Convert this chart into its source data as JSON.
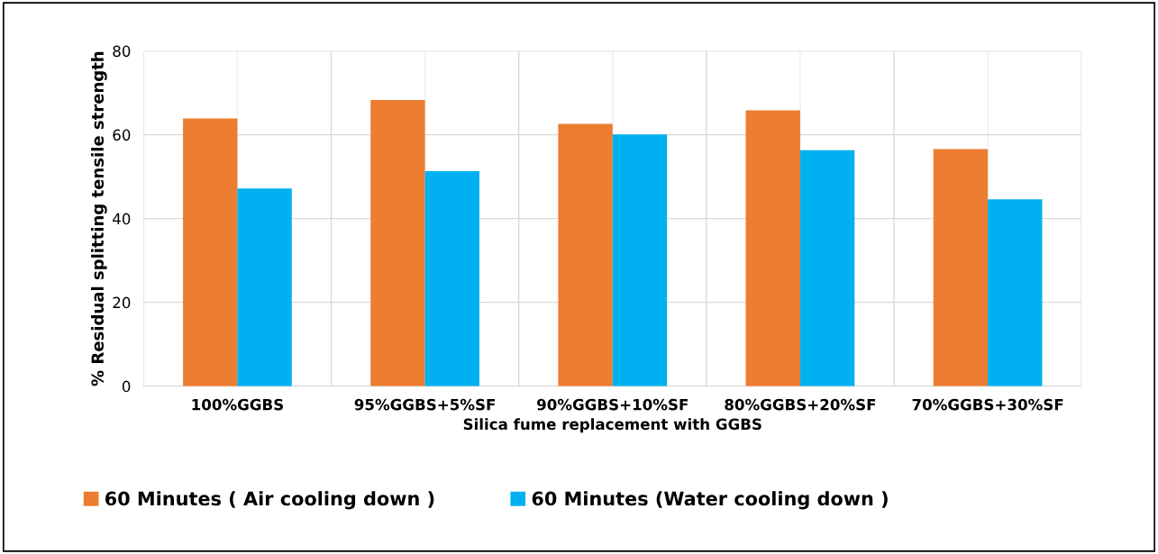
{
  "chart_data": {
    "type": "bar",
    "xlabel": "Silica fume replacement with GGBS",
    "ylabel": "% Residual splitting tensile strength",
    "categories": [
      "100%GGBS",
      "95%GGBS+5%SF",
      "90%GGBS+10%SF",
      "80%GGBS+20%SF",
      "70%GGBS+30%SF"
    ],
    "series": [
      {
        "name": "60 Minutes ( Air cooling down )",
        "color": "#ed7d31",
        "values": [
          63.9,
          68.3,
          62.6,
          65.8,
          56.6
        ]
      },
      {
        "name": "60 Minutes (Water cooling down )",
        "color": "#00b0f0",
        "values": [
          47.2,
          51.3,
          60.1,
          56.3,
          44.6
        ]
      }
    ],
    "ylim": [
      0,
      80
    ],
    "yticks": [
      0,
      20,
      40,
      60,
      80
    ],
    "grid": true,
    "legend": "bottom"
  }
}
